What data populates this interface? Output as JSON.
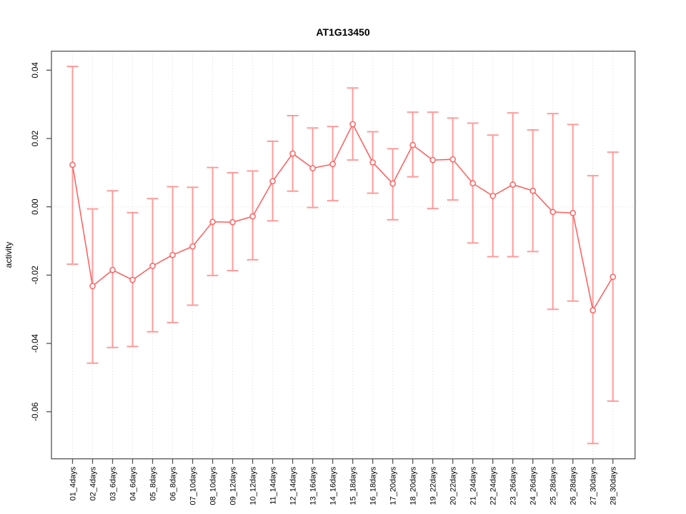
{
  "title": "AT1G13450",
  "chart_data": {
    "type": "line",
    "title": "AT1G13450",
    "xlabel": "",
    "ylabel": "activity",
    "ylim": [
      -0.072,
      0.045
    ],
    "yticks": [
      0.04,
      0.02,
      0.0,
      -0.02,
      -0.04,
      -0.06
    ],
    "ytick_labels": [
      "0.04",
      "0.02",
      "0.00",
      "-0.02",
      "-0.04",
      "-0.06"
    ],
    "grid": {
      "vertical": "dotted at every category",
      "horizontal": "dotted at 0.00 only"
    },
    "legend_position": "none",
    "categories": [
      "01_4days",
      "02_4days",
      "03_6days",
      "04_6days",
      "05_8days",
      "06_8days",
      "07_10days",
      "08_10days",
      "09_12days",
      "10_12days",
      "11_14days",
      "12_14days",
      "13_16days",
      "14_16days",
      "15_18days",
      "16_18days",
      "17_20days",
      "18_20days",
      "19_22days",
      "20_22days",
      "21_24days",
      "22_24days",
      "23_26days",
      "24_26days",
      "25_28days",
      "26_28days",
      "27_30days",
      "28_30days"
    ],
    "series": [
      {
        "name": "mean_activity",
        "values": [
          0.0123,
          -0.0232,
          -0.0185,
          -0.0214,
          -0.0173,
          -0.0141,
          -0.0116,
          -0.0044,
          -0.0045,
          -0.0028,
          0.0075,
          0.0156,
          0.0113,
          0.0125,
          0.0242,
          0.013,
          0.0068,
          0.0181,
          0.0137,
          0.0139,
          0.0069,
          0.0032,
          0.0065,
          0.0047,
          -0.0015,
          -0.0018,
          -0.0303,
          -0.0205
        ]
      },
      {
        "name": "ci_lower",
        "values": [
          -0.0168,
          -0.0458,
          -0.0412,
          -0.0409,
          -0.0366,
          -0.0339,
          -0.0288,
          -0.0201,
          -0.0187,
          -0.0155,
          -0.0041,
          0.0046,
          -0.0002,
          0.0018,
          0.0137,
          0.004,
          -0.0038,
          0.0088,
          -0.0005,
          0.002,
          -0.0106,
          -0.0146,
          -0.0146,
          -0.0131,
          -0.03,
          -0.0276,
          -0.0693,
          -0.0569
        ]
      },
      {
        "name": "ci_upper",
        "values": [
          0.0411,
          -0.0006,
          0.0047,
          -0.0017,
          0.0024,
          0.0059,
          0.0057,
          0.0115,
          0.01,
          0.0105,
          0.0192,
          0.0267,
          0.0231,
          0.0235,
          0.0348,
          0.022,
          0.017,
          0.0277,
          0.0277,
          0.026,
          0.0245,
          0.021,
          0.0275,
          0.0225,
          0.0273,
          0.0241,
          0.0091,
          0.016
        ]
      }
    ],
    "colors": {
      "errorbar": "#FF9B9B",
      "line": "#FF5B5B",
      "point_stroke": "#FF5B5B",
      "point_fill": "#FFFFFF",
      "grid": "#DBDBDB",
      "box": "#555555",
      "text": "#000000"
    }
  }
}
